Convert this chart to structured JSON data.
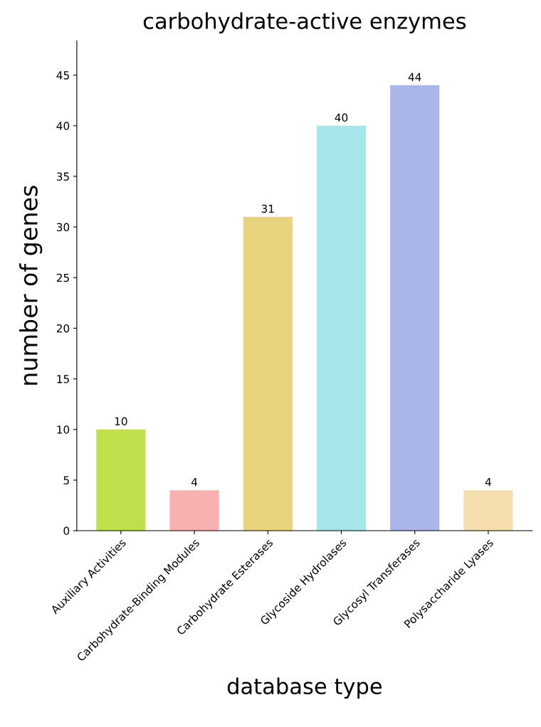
{
  "chart_data": {
    "type": "bar",
    "title": "carbohydrate-active enzymes",
    "xlabel": "database type",
    "ylabel": "number of genes",
    "categories": [
      "Auxiliary Activities",
      "Carbohydrate-Binding Modules",
      "Carbohydrate Esterases",
      "Glycoside Hydrolases",
      "Glycosyl Transferases",
      "Polysaccharide Lyases"
    ],
    "values": [
      10,
      4,
      31,
      40,
      44,
      4
    ],
    "colors": [
      "#bfe04a",
      "#f9b0b0",
      "#e8d47c",
      "#a6e6ea",
      "#abb6e8",
      "#f5deae"
    ],
    "ylim": [
      0,
      48.4
    ],
    "yticks": [
      0,
      5,
      10,
      15,
      20,
      25,
      30,
      35,
      40,
      45
    ],
    "grid": false,
    "data_labels": true
  }
}
